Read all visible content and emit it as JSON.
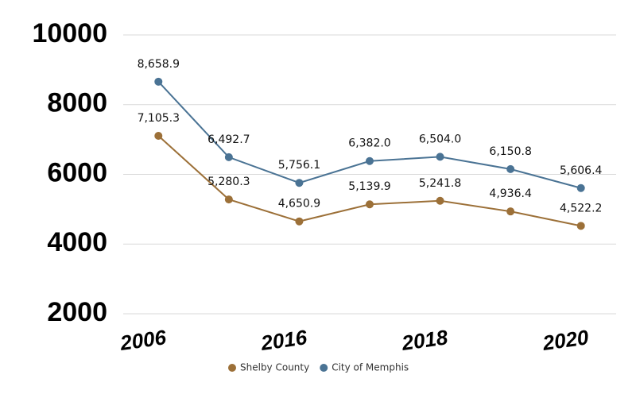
{
  "chart_data": {
    "type": "line",
    "categories": [
      "2006",
      null,
      "2016",
      null,
      "2018",
      null,
      "2020"
    ],
    "series": [
      {
        "name": "Shelby County",
        "color": "#9c7038",
        "values": [
          7105.3,
          5280.3,
          4650.9,
          5139.9,
          5241.8,
          4936.4,
          4522.2
        ],
        "value_labels": [
          "7,105.3",
          "5,280.3",
          "4,650.9",
          "5,139.9",
          "5,241.8",
          "4,936.4",
          "4,522.2"
        ]
      },
      {
        "name": "City of Memphis",
        "color": "#4a7394",
        "values": [
          8658.9,
          6492.7,
          5756.1,
          6382.0,
          6504.0,
          6150.8,
          5606.4
        ],
        "value_labels": [
          "8,658.9",
          "6,492.7",
          "5,756.1",
          "6,382.0",
          "6,504.0",
          "6,150.8",
          "5,606.4"
        ]
      }
    ],
    "ylim": [
      2000,
      10000
    ],
    "yticks": [
      2000,
      4000,
      6000,
      8000,
      10000
    ],
    "grid": true
  }
}
